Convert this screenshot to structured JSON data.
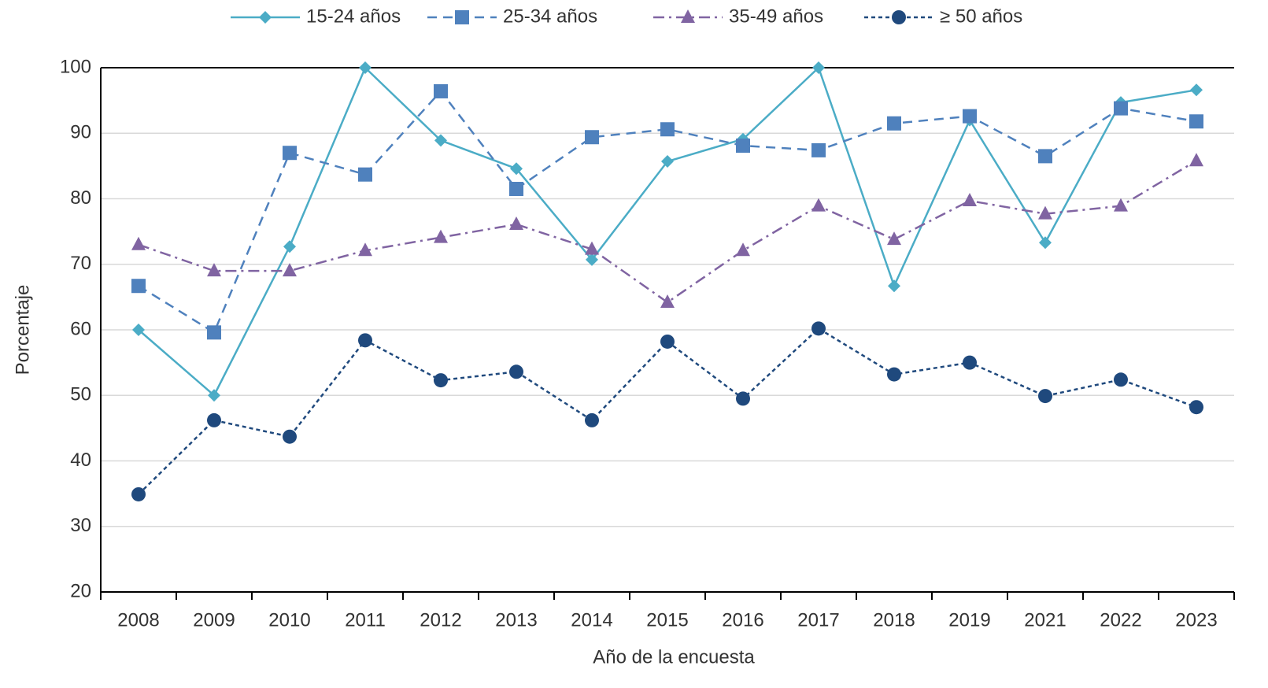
{
  "chart_data": {
    "type": "line",
    "x_label": "Año de la encuesta",
    "y_label": "Porcentaje",
    "categories": [
      "2008",
      "2009",
      "2010",
      "2011",
      "2012",
      "2013",
      "2014",
      "2015",
      "2016",
      "2017",
      "2018",
      "2019",
      "2021",
      "2022",
      "2023"
    ],
    "series": [
      {
        "name": "15-24 años",
        "color": "#4BACC6",
        "marker": "diamond",
        "dash": "solid",
        "values": [
          60,
          50,
          72.7,
          100,
          88.9,
          84.6,
          70.7,
          85.7,
          89.1,
          100,
          66.7,
          92.0,
          73.3,
          94.7,
          96.6
        ]
      },
      {
        "name": "25-34 años",
        "color": "#4F81BD",
        "marker": "square",
        "dash": "dash",
        "values": [
          66.7,
          59.6,
          87.0,
          83.7,
          96.4,
          81.5,
          89.4,
          90.6,
          88.1,
          87.4,
          91.5,
          92.6,
          86.5,
          93.8,
          91.8
        ]
      },
      {
        "name": "35-49 años",
        "color": "#8064A2",
        "marker": "triangle",
        "dash": "dashdot",
        "values": [
          73.0,
          69.0,
          69.0,
          72.1,
          74.1,
          76.1,
          72.3,
          64.2,
          72.1,
          78.9,
          73.8,
          79.7,
          77.7,
          78.9,
          85.8
        ]
      },
      {
        "name": "≥ 50 años",
        "color": "#1F497D",
        "marker": "circle",
        "dash": "dot",
        "values": [
          34.9,
          46.2,
          43.7,
          58.4,
          52.3,
          53.6,
          46.2,
          58.2,
          49.5,
          60.2,
          53.2,
          55.0,
          49.9,
          52.4,
          48.2
        ]
      }
    ],
    "ylim": [
      20,
      100
    ],
    "yticks": [
      20,
      30,
      40,
      50,
      60,
      70,
      80,
      90,
      100
    ],
    "grid": true,
    "legend": "top"
  }
}
